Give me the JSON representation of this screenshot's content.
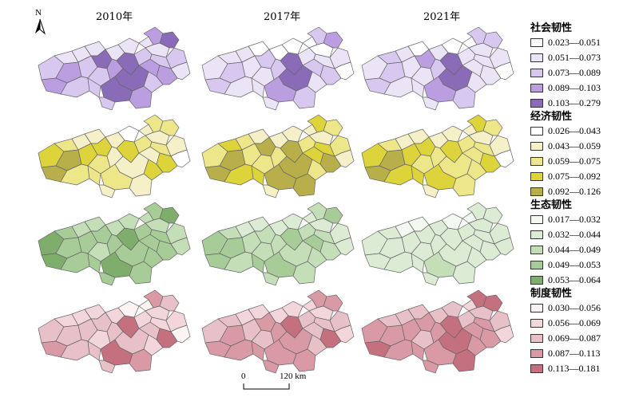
{
  "years": [
    "2010年",
    "2017年",
    "2021年"
  ],
  "north_label": "N",
  "scale": {
    "zero": "0",
    "distance": "120 km"
  },
  "legends": [
    {
      "title": "社会韧性",
      "ranges": [
        "0.023—0.051",
        "0.051—0.073",
        "0.073—0.089",
        "0.089—0.103",
        "0.103—0.279"
      ],
      "colors": [
        "#ffffff",
        "#eae4f6",
        "#d8c8f0",
        "#bb9ee0",
        "#8a6bb8"
      ],
      "levels": [
        [
          2,
          1,
          3,
          1,
          2,
          3,
          2,
          1,
          4,
          2,
          1,
          3,
          4,
          2,
          1,
          4,
          4,
          3,
          2,
          1,
          2,
          3,
          1,
          4,
          2,
          3,
          2,
          1,
          3,
          2
        ],
        [
          1,
          1,
          2,
          1,
          1,
          2,
          1,
          0,
          2,
          1,
          0,
          2,
          4,
          1,
          0,
          4,
          3,
          2,
          1,
          0,
          1,
          2,
          0,
          3,
          1,
          2,
          1,
          0,
          2,
          1
        ],
        [
          1,
          2,
          2,
          1,
          1,
          2,
          1,
          0,
          3,
          1,
          1,
          2,
          4,
          1,
          0,
          4,
          3,
          1,
          1,
          0,
          1,
          2,
          1,
          2,
          1,
          1,
          1,
          0,
          2,
          1
        ]
      ]
    },
    {
      "title": "经济韧性",
      "ranges": [
        "0.026—0.043",
        "0.043—0.059",
        "0.059—0.075",
        "0.075—0.092",
        "0.092—0.126"
      ],
      "colors": [
        "#ffffff",
        "#f6f0c8",
        "#eee78a",
        "#dcd43a",
        "#b8ae4a"
      ],
      "levels": [
        [
          3,
          2,
          4,
          1,
          3,
          4,
          2,
          1,
          3,
          2,
          1,
          1,
          3,
          2,
          0,
          1,
          2,
          1,
          2,
          1,
          3,
          2,
          1,
          2,
          2,
          3,
          1,
          0,
          1,
          1
        ],
        [
          2,
          3,
          4,
          2,
          2,
          4,
          3,
          1,
          4,
          2,
          1,
          2,
          4,
          3,
          1,
          4,
          4,
          3,
          2,
          1,
          2,
          3,
          1,
          2,
          3,
          4,
          2,
          1,
          4,
          1
        ],
        [
          3,
          2,
          4,
          1,
          3,
          4,
          3,
          1,
          3,
          2,
          1,
          2,
          3,
          3,
          1,
          2,
          3,
          2,
          2,
          1,
          2,
          3,
          1,
          2,
          2,
          3,
          1,
          0,
          2,
          1
        ]
      ]
    },
    {
      "title": "生态韧性",
      "ranges": [
        "0.017—0.032",
        "0.032—0.044",
        "0.044—0.049",
        "0.049—0.053",
        "0.053—0.064"
      ],
      "colors": [
        "#f3f8f0",
        "#dcebd4",
        "#c4deb8",
        "#a8cc98",
        "#7fae6c"
      ],
      "levels": [
        [
          4,
          3,
          3,
          2,
          3,
          4,
          3,
          2,
          3,
          2,
          2,
          3,
          4,
          3,
          2,
          3,
          4,
          3,
          3,
          2,
          3,
          3,
          2,
          4,
          3,
          3,
          2,
          2,
          3,
          3
        ],
        [
          3,
          2,
          3,
          1,
          2,
          3,
          2,
          1,
          2,
          2,
          1,
          2,
          3,
          3,
          1,
          2,
          3,
          3,
          2,
          1,
          2,
          2,
          1,
          3,
          2,
          2,
          1,
          1,
          2,
          2
        ],
        [
          1,
          1,
          1,
          0,
          1,
          1,
          1,
          0,
          1,
          1,
          1,
          1,
          1,
          1,
          0,
          1,
          2,
          1,
          1,
          0,
          1,
          1,
          1,
          1,
          1,
          1,
          1,
          1,
          1,
          1
        ]
      ]
    },
    {
      "title": "制度韧性",
      "ranges": [
        "0.030—0.056",
        "0.056—0.069",
        "0.069—0.087",
        "0.087—0.113",
        "0.113—0.181"
      ],
      "colors": [
        "#fdf3f5",
        "#f2d6dc",
        "#e8c0c8",
        "#d99aa6",
        "#c4707e"
      ],
      "levels": [
        [
          2,
          1,
          2,
          1,
          2,
          3,
          2,
          1,
          2,
          1,
          1,
          2,
          4,
          2,
          0,
          2,
          4,
          2,
          1,
          0,
          1,
          3,
          1,
          2,
          1,
          4,
          1,
          0,
          3,
          2
        ],
        [
          2,
          2,
          3,
          1,
          2,
          3,
          3,
          1,
          3,
          2,
          1,
          3,
          4,
          3,
          1,
          3,
          3,
          2,
          2,
          1,
          2,
          3,
          1,
          3,
          2,
          4,
          2,
          1,
          3,
          3
        ],
        [
          3,
          2,
          3,
          2,
          3,
          4,
          3,
          2,
          3,
          2,
          2,
          3,
          4,
          3,
          2,
          4,
          3,
          3,
          2,
          1,
          3,
          4,
          2,
          4,
          3,
          3,
          2,
          1,
          4,
          3
        ]
      ]
    }
  ]
}
